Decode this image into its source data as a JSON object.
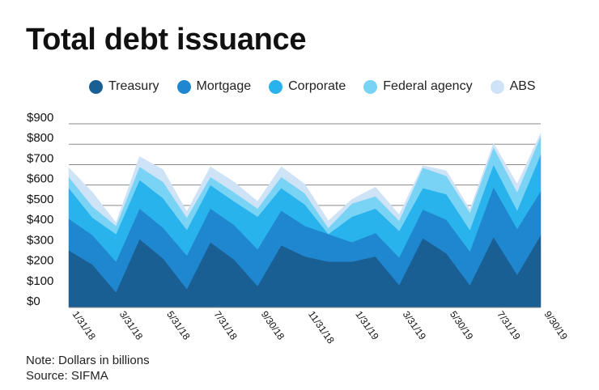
{
  "title": "Total debt issuance",
  "note": "Note: Dollars in billions",
  "source": "Source: SIFMA",
  "chart_data": {
    "type": "area",
    "stacked": true,
    "title": "Total debt issuance",
    "xlabel": "",
    "ylabel": "",
    "ylim": [
      0,
      900
    ],
    "yticks": [
      "$900",
      "$800",
      "$700",
      "$600",
      "$500",
      "$400",
      "$300",
      "$200",
      "$100",
      "$0"
    ],
    "ytick_values": [
      900,
      800,
      700,
      600,
      500,
      400,
      300,
      200,
      100,
      0
    ],
    "grid": true,
    "legend_position": "top",
    "categories": [
      "1/31/18",
      "2/28/18",
      "3/31/18",
      "4/30/18",
      "5/31/18",
      "6/30/18",
      "7/31/18",
      "8/31/18",
      "9/30/18",
      "10/31/18",
      "11/31/18",
      "12/31/18",
      "1/31/19",
      "2/28/19",
      "3/31/19",
      "4/30/19",
      "5/30/19",
      "6/30/19",
      "7/31/19",
      "8/31/19",
      "9/30/19"
    ],
    "tick_labels": [
      "1/31/18",
      "",
      "3/31/18",
      "",
      "5/31/18",
      "",
      "7/31/18",
      "",
      "9/30/18",
      "",
      "11/31/18",
      "",
      "1/31/19",
      "",
      "3/31/19",
      "",
      "5/30/19",
      "",
      "7/31/19",
      "",
      "9/30/19"
    ],
    "series": [
      {
        "name": "Treasury",
        "color": "#1a5f94",
        "values": [
          280,
          210,
          75,
          335,
          240,
          90,
          320,
          235,
          105,
          305,
          250,
          225,
          225,
          250,
          110,
          340,
          265,
          110,
          345,
          160,
          355
        ]
      },
      {
        "name": "Mortgage",
        "color": "#1f86d0",
        "values": [
          155,
          145,
          150,
          150,
          150,
          165,
          165,
          170,
          180,
          170,
          150,
          135,
          95,
          115,
          135,
          140,
          165,
          165,
          245,
          225,
          215
        ]
      },
      {
        "name": "Corporate",
        "color": "#29b3ed",
        "values": [
          150,
          85,
          135,
          140,
          145,
          125,
          115,
          115,
          160,
          110,
          105,
          0,
          125,
          120,
          130,
          105,
          125,
          105,
          110,
          90,
          180
        ]
      },
      {
        "name": "Federal agency",
        "color": "#78d3f5",
        "values": [
          55,
          55,
          40,
          65,
          80,
          60,
          40,
          45,
          40,
          55,
          55,
          30,
          65,
          60,
          50,
          100,
          90,
          85,
          85,
          90,
          90
        ]
      },
      {
        "name": "ABS",
        "color": "#cfe3f7",
        "values": [
          45,
          70,
          15,
          50,
          60,
          30,
          50,
          50,
          35,
          50,
          45,
          35,
          20,
          45,
          30,
          10,
          25,
          15,
          20,
          40,
          15
        ]
      }
    ]
  },
  "colors": {
    "grid": "#8a8a8a",
    "text": "#111111"
  }
}
